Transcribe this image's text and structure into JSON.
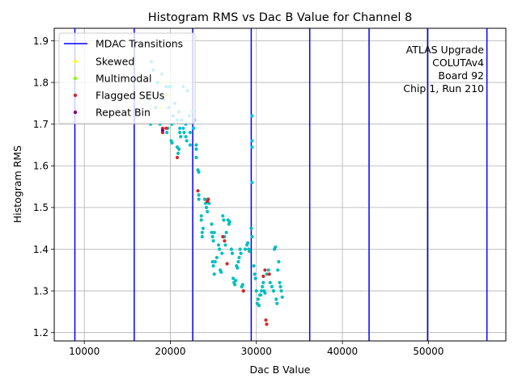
{
  "chart_data": {
    "type": "scatter",
    "title": "Histogram RMS vs Dac B Value for Channel 8",
    "xlabel": "Dac B Value",
    "ylabel": "Histogram RMS",
    "xlim": [
      6500,
      59000
    ],
    "ylim": [
      1.18,
      1.93
    ],
    "xticks": [
      10000,
      20000,
      30000,
      40000,
      50000
    ],
    "yticks": [
      1.2,
      1.3,
      1.4,
      1.5,
      1.6,
      1.7,
      1.8,
      1.9
    ],
    "grid": true,
    "legend_position": "top-left",
    "annotation": [
      "ATLAS Upgrade",
      "COLUTAv4",
      "Board 92",
      "Chip 1, Run 210"
    ],
    "colors": {
      "mdac": "#0000ff",
      "normal": "#00bfbf",
      "skewed": "#ffff00",
      "multimodal": "#80ff00",
      "flagged": "#d62728",
      "repeat": "#800080",
      "high_mode": "#00bfff"
    },
    "legend": [
      {
        "label": "MDAC Transitions",
        "kind": "line",
        "color": "#0000ff"
      },
      {
        "label": "Skewed",
        "kind": "dot",
        "color": "#ffff00"
      },
      {
        "label": "Multimodal",
        "kind": "dot",
        "color": "#80ff00"
      },
      {
        "label": "Flagged SEUs",
        "kind": "dot",
        "color": "#d62728"
      },
      {
        "label": "Repeat Bin",
        "kind": "dot",
        "color": "#800080"
      }
    ],
    "mdac_transitions": [
      8900,
      15800,
      22600,
      29400,
      36200,
      43100,
      49900,
      56800
    ],
    "series": [
      {
        "category": "normal",
        "color": "#00bfbf",
        "points": [
          [
            17800,
            1.85
          ],
          [
            18000,
            1.83
          ],
          [
            18500,
            1.8
          ],
          [
            19000,
            1.82
          ],
          [
            19500,
            1.79
          ],
          [
            20000,
            1.79
          ],
          [
            20500,
            1.75
          ],
          [
            21000,
            1.73
          ],
          [
            21500,
            1.79
          ],
          [
            22000,
            1.78
          ],
          [
            17500,
            1.76
          ],
          [
            18300,
            1.74
          ],
          [
            19200,
            1.76
          ],
          [
            19800,
            1.74
          ],
          [
            20300,
            1.72
          ],
          [
            20800,
            1.71
          ],
          [
            21300,
            1.71
          ],
          [
            21800,
            1.7
          ],
          [
            22200,
            1.72
          ],
          [
            22600,
            1.73
          ],
          [
            17700,
            1.7
          ],
          [
            18800,
            1.7
          ],
          [
            19700,
            1.69
          ],
          [
            20200,
            1.7
          ],
          [
            21100,
            1.69
          ],
          [
            21600,
            1.68
          ],
          [
            22300,
            1.68
          ],
          [
            22700,
            1.69
          ],
          [
            19600,
            1.68
          ],
          [
            20100,
            1.66
          ],
          [
            20200,
            1.655
          ],
          [
            21100,
            1.68
          ],
          [
            21200,
            1.67
          ],
          [
            21800,
            1.67
          ],
          [
            21900,
            1.66
          ],
          [
            22300,
            1.65
          ],
          [
            20800,
            1.645
          ],
          [
            20900,
            1.63
          ],
          [
            21000,
            1.64
          ],
          [
            23000,
            1.65
          ],
          [
            23000,
            1.64
          ],
          [
            23000,
            1.62
          ],
          [
            23200,
            1.59
          ],
          [
            23300,
            1.585
          ],
          [
            23300,
            1.53
          ],
          [
            23300,
            1.52
          ],
          [
            23600,
            1.48
          ],
          [
            23600,
            1.47
          ],
          [
            23700,
            1.44
          ],
          [
            23700,
            1.43
          ],
          [
            23800,
            1.45
          ],
          [
            24000,
            1.52
          ],
          [
            24100,
            1.51
          ],
          [
            24200,
            1.5
          ],
          [
            24300,
            1.49
          ],
          [
            24400,
            1.52
          ],
          [
            24500,
            1.51
          ],
          [
            24800,
            1.46
          ],
          [
            24800,
            1.44
          ],
          [
            24900,
            1.43
          ],
          [
            25000,
            1.42
          ],
          [
            25100,
            1.44
          ],
          [
            24900,
            1.37
          ],
          [
            25000,
            1.36
          ],
          [
            25100,
            1.34
          ],
          [
            25200,
            1.37
          ],
          [
            25400,
            1.38
          ],
          [
            25600,
            1.41
          ],
          [
            25700,
            1.4
          ],
          [
            25800,
            1.35
          ],
          [
            25900,
            1.345
          ],
          [
            26000,
            1.39
          ],
          [
            26100,
            1.48
          ],
          [
            26200,
            1.47
          ],
          [
            26300,
            1.43
          ],
          [
            26400,
            1.41
          ],
          [
            26500,
            1.44
          ],
          [
            26700,
            1.47
          ],
          [
            26800,
            1.46
          ],
          [
            26900,
            1.465
          ],
          [
            27100,
            1.4
          ],
          [
            27200,
            1.39
          ],
          [
            27300,
            1.33
          ],
          [
            27400,
            1.32
          ],
          [
            27500,
            1.315
          ],
          [
            27600,
            1.325
          ],
          [
            27700,
            1.36
          ],
          [
            27800,
            1.355
          ],
          [
            27900,
            1.37
          ],
          [
            28000,
            1.38
          ],
          [
            28100,
            1.4
          ],
          [
            28200,
            1.39
          ],
          [
            28300,
            1.31
          ],
          [
            28400,
            1.315
          ],
          [
            28500,
            1.3
          ],
          [
            28700,
            1.4
          ],
          [
            28900,
            1.41
          ],
          [
            29000,
            1.415
          ],
          [
            29100,
            1.4
          ],
          [
            29200,
            1.395
          ],
          [
            29400,
            1.45
          ],
          [
            29500,
            1.43
          ],
          [
            29700,
            1.36
          ],
          [
            29800,
            1.34
          ],
          [
            29900,
            1.33
          ],
          [
            30000,
            1.3
          ],
          [
            30100,
            1.27
          ],
          [
            30200,
            1.28
          ],
          [
            30300,
            1.265
          ],
          [
            30400,
            1.29
          ],
          [
            30500,
            1.29
          ],
          [
            30600,
            1.3
          ],
          [
            30700,
            1.31
          ],
          [
            30800,
            1.32
          ],
          [
            30900,
            1.3
          ],
          [
            31000,
            1.295
          ],
          [
            31200,
            1.34
          ],
          [
            31400,
            1.35
          ],
          [
            31600,
            1.32
          ],
          [
            31800,
            1.31
          ],
          [
            32000,
            1.3
          ],
          [
            32100,
            1.4
          ],
          [
            32200,
            1.405
          ],
          [
            32300,
            1.28
          ],
          [
            32400,
            1.27
          ],
          [
            32500,
            1.35
          ],
          [
            32600,
            1.37
          ],
          [
            32700,
            1.32
          ],
          [
            32800,
            1.31
          ],
          [
            32900,
            1.3
          ],
          [
            33000,
            1.285
          ]
        ]
      },
      {
        "category": "high_mode",
        "color": "#00bfff",
        "points": [
          [
            29500,
            1.72
          ],
          [
            29500,
            1.66
          ],
          [
            29500,
            1.645
          ],
          [
            29500,
            1.56
          ],
          [
            22700,
            1.69
          ],
          [
            22800,
            1.71
          ],
          [
            21500,
            1.69
          ],
          [
            19800,
            1.79
          ]
        ]
      },
      {
        "category": "flagged",
        "color": "#d62728",
        "points": [
          [
            19100,
            1.69
          ],
          [
            19100,
            1.68
          ],
          [
            19500,
            1.69
          ],
          [
            20800,
            1.62
          ],
          [
            23200,
            1.54
          ],
          [
            24300,
            1.515
          ],
          [
            24400,
            1.52
          ],
          [
            26100,
            1.43
          ],
          [
            26300,
            1.42
          ],
          [
            26600,
            1.365
          ],
          [
            28500,
            1.3
          ],
          [
            30800,
            1.335
          ],
          [
            31000,
            1.35
          ],
          [
            31100,
            1.23
          ],
          [
            31200,
            1.22
          ],
          [
            31500,
            1.34
          ]
        ]
      },
      {
        "category": "skewed",
        "color": "#ffff00",
        "points": [
          [
            18900,
            1.74
          ],
          [
            19300,
            1.8
          ]
        ]
      },
      {
        "category": "multimodal",
        "color": "#80ff00",
        "points": [
          [
            19600,
            1.77
          ]
        ]
      },
      {
        "category": "repeat",
        "color": "#800080",
        "points": [
          [
            19100,
            1.685
          ]
        ]
      }
    ]
  }
}
